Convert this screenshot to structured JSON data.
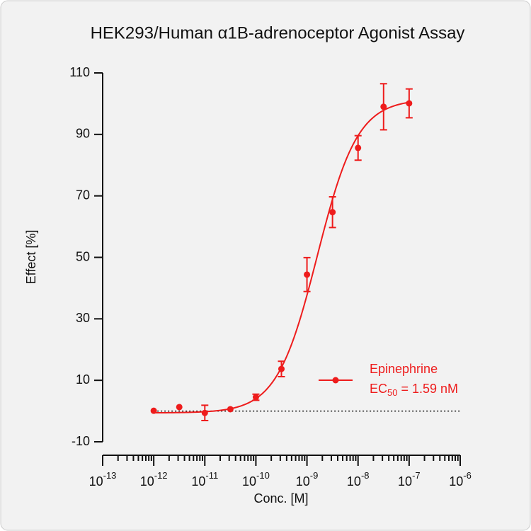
{
  "chart_data": {
    "type": "dose-response",
    "title": "HEK293/Human α1B-adrenoceptor Agonist Assay",
    "xlabel": "Conc. [M]",
    "ylabel": "Effect  [%]",
    "log_x": true,
    "xlim": [
      1e-13,
      1e-06
    ],
    "xticks": [
      {
        "value": 1e-13,
        "label": "10",
        "exponent": "-13"
      },
      {
        "value": 1e-12,
        "label": "10",
        "exponent": "-12"
      },
      {
        "value": 1e-11,
        "label": "10",
        "exponent": "-11"
      },
      {
        "value": 1e-10,
        "label": "10",
        "exponent": "-10"
      },
      {
        "value": 1e-09,
        "label": "10",
        "exponent": "-9"
      },
      {
        "value": 1e-08,
        "label": "10",
        "exponent": "-8"
      },
      {
        "value": 1e-07,
        "label": "10",
        "exponent": "-7"
      },
      {
        "value": 1e-06,
        "label": "10",
        "exponent": "-6"
      }
    ],
    "ylim": [
      -10,
      110
    ],
    "yticks": [
      -10,
      10,
      30,
      50,
      70,
      90,
      110
    ],
    "baseline": 0,
    "series": [
      {
        "name": "Epinephrine",
        "color": "#ee1c1c",
        "x": [
          1e-12,
          3.162e-12,
          1e-11,
          3.162e-11,
          1e-10,
          3.162e-10,
          1e-09,
          3.162e-09,
          1e-08,
          3.162e-08,
          1e-07
        ],
        "values": [
          0.1,
          1.3,
          -0.6,
          0.6,
          4.5,
          13.7,
          44.4,
          64.7,
          85.6,
          99.0,
          100.1
        ],
        "errors": [
          0,
          0,
          2.5,
          0,
          1,
          2.5,
          5.5,
          5,
          4,
          7.5,
          4.7
        ]
      }
    ],
    "fit": {
      "bottom": -0.6,
      "top": 101.5,
      "ec50": 1.59e-09,
      "hill": 1.1
    },
    "legend_note": {
      "prefix": "EC",
      "subscript": "50",
      "text": " = 1.59 nM"
    }
  }
}
